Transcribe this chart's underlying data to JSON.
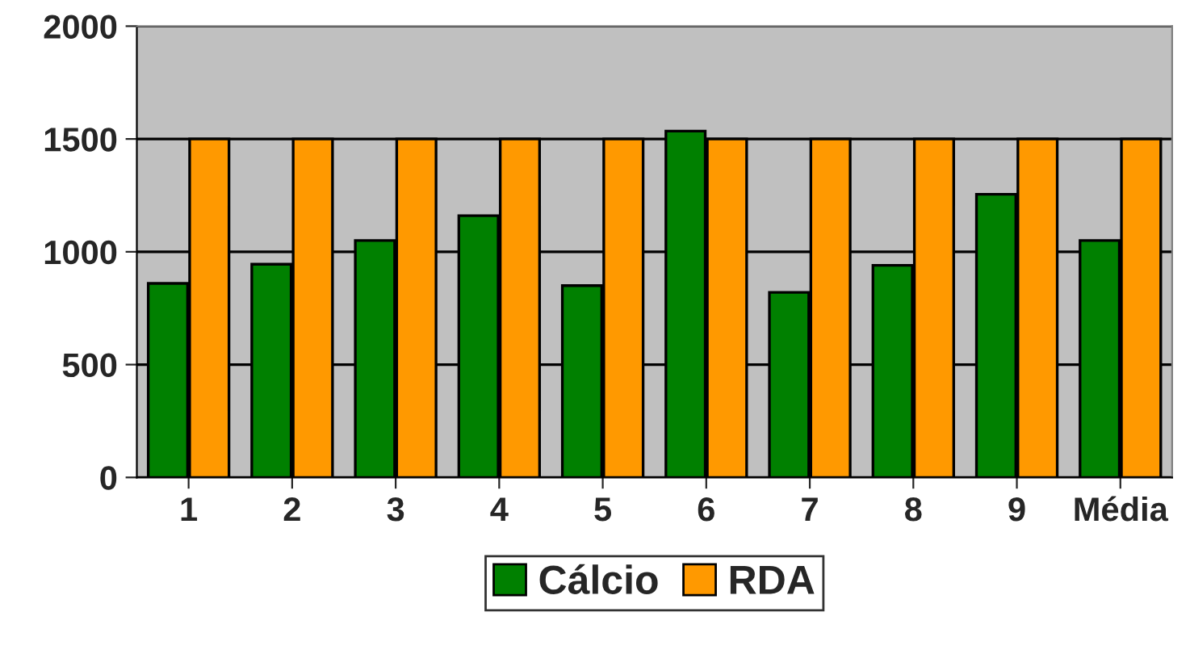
{
  "chart_data": {
    "type": "bar",
    "categories": [
      "1",
      "2",
      "3",
      "4",
      "5",
      "6",
      "7",
      "8",
      "9",
      "Média"
    ],
    "series": [
      {
        "name": "Cálcio",
        "color": "#008000",
        "values": [
          860,
          945,
          1050,
          1160,
          850,
          1535,
          820,
          940,
          1255,
          1050
        ]
      },
      {
        "name": "RDA",
        "color": "#ff9900",
        "values": [
          1500,
          1500,
          1500,
          1500,
          1500,
          1500,
          1500,
          1500,
          1500,
          1500
        ]
      }
    ],
    "ylim": [
      0,
      2000
    ],
    "yticks": [
      0,
      500,
      1000,
      1500,
      2000
    ],
    "grid": "y",
    "legend": "bottom"
  }
}
